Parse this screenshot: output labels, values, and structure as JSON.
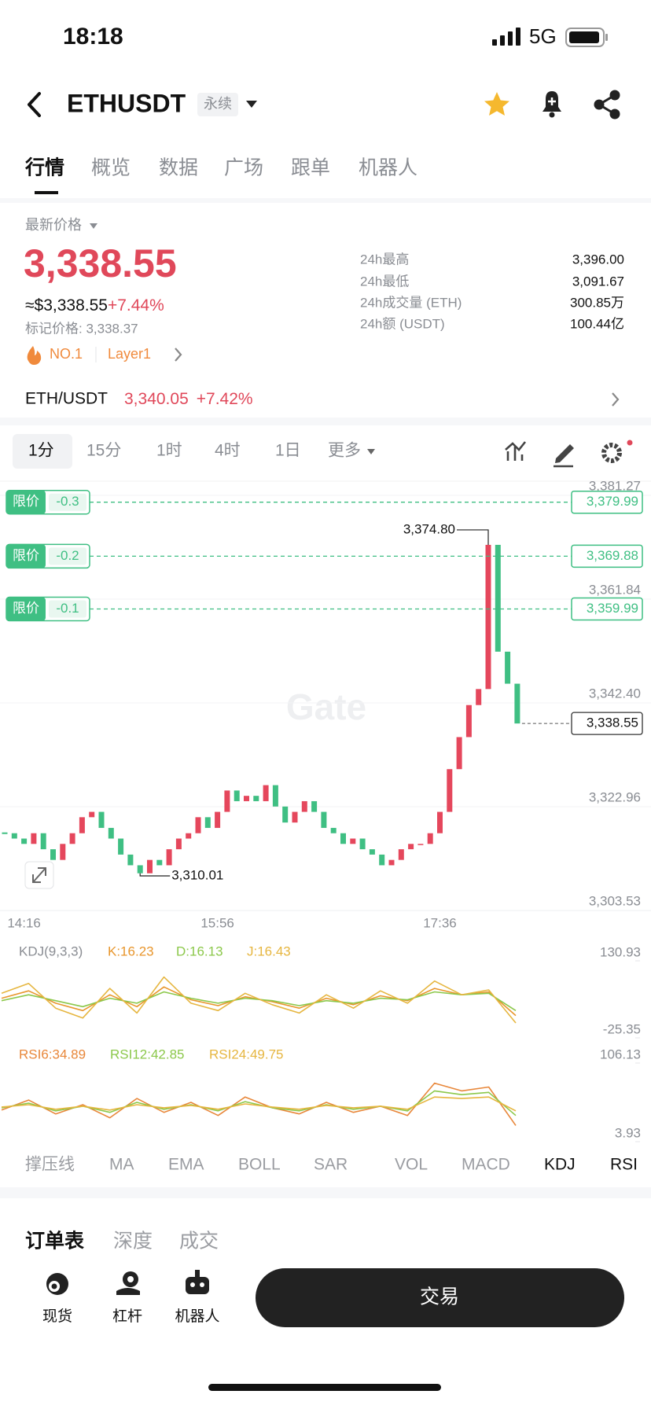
{
  "status_bar": {
    "time": "18:18",
    "network": "5G"
  },
  "header": {
    "symbol": "ETHUSDT",
    "contract_type": "永续"
  },
  "tabs": [
    "行情",
    "概览",
    "数据",
    "广场",
    "跟单",
    "机器人"
  ],
  "price": {
    "label": "最新价格",
    "last": "3,338.55",
    "usd": "≈$3,338.55",
    "change": "+7.44%",
    "mark_price": "标记价格: 3,338.37",
    "rank": "NO.1",
    "sector": "Layer1"
  },
  "stats": [
    {
      "label": "24h最高",
      "value": "3,396.00"
    },
    {
      "label": "24h最低",
      "value": "3,091.67"
    },
    {
      "label": "24h成交量 (ETH)",
      "value": "300.85万"
    },
    {
      "label": "24h额 (USDT)",
      "value": "100.44亿"
    }
  ],
  "spot": {
    "pair": "ETH/USDT",
    "price": "3,340.05",
    "change": "+7.42%"
  },
  "timeframes": [
    "1分",
    "15分",
    "1时",
    "4时",
    "1日",
    "更多"
  ],
  "chart_data": {
    "type": "candlestick",
    "watermark": "Gate",
    "up_color": "#e5475c",
    "down_color": "#3fbf83",
    "categories": [
      null,
      null,
      "14:16",
      null,
      null,
      null,
      null,
      null,
      null,
      null,
      null,
      null,
      null,
      null,
      null,
      null,
      null,
      null,
      null,
      null,
      null,
      null,
      "15:56",
      null,
      null,
      null,
      null,
      null,
      null,
      null,
      null,
      null,
      null,
      null,
      null,
      null,
      null,
      null,
      null,
      null,
      null,
      null,
      null,
      null,
      null,
      "17:36",
      null,
      null,
      null,
      null,
      null,
      null,
      null,
      null
    ],
    "closes": [
      3318,
      3317,
      3316,
      3318,
      3315,
      3313,
      3316,
      3318,
      3321,
      3322,
      3319,
      3317,
      3314,
      3312,
      3310.5,
      3313,
      3312,
      3315,
      3317,
      3318,
      3321,
      3319,
      3322,
      3326,
      3324,
      3325,
      3324,
      3327,
      3323,
      3320,
      3322,
      3324,
      3322,
      3319,
      3318,
      3316,
      3317,
      3315,
      3314,
      3312,
      3313,
      3315,
      3316,
      3316,
      3318,
      3322,
      3330,
      3336,
      3342,
      3345,
      3372,
      3352,
      3346,
      3338.55
    ],
    "ylim": [
      3303.53,
      3381.27
    ],
    "yticks": [
      {
        "value": 3381.27,
        "label": "3,381.27"
      },
      {
        "value": 3361.84,
        "label": "3,361.84"
      },
      {
        "value": 3342.4,
        "label": "3,342.40"
      },
      {
        "value": 3322.96,
        "label": "3,322.96"
      },
      {
        "value": 3303.53,
        "label": "3,303.53"
      }
    ],
    "high": {
      "value": 3374.8,
      "label": "3,374.80"
    },
    "low": {
      "value": 3310.01,
      "label": "3,310.01"
    },
    "current_price": {
      "value": 3338.55,
      "label": "3,338.55"
    },
    "limit_orders": [
      {
        "tag": "限价",
        "offset": "-0.3",
        "price": {
          "value": 3379.99,
          "label": "3,379.99"
        }
      },
      {
        "tag": "限价",
        "offset": "-0.2",
        "price": {
          "value": 3369.88,
          "label": "3,369.88"
        }
      },
      {
        "tag": "限价",
        "offset": "-0.1",
        "price": {
          "value": 3359.99,
          "label": "3,359.99"
        }
      }
    ]
  },
  "indicators": {
    "kdj": {
      "title": "KDJ(9,3,3)",
      "ylim": [
        -25.35,
        130.93
      ],
      "yticks": [
        130.93,
        -25.35
      ],
      "series": [
        {
          "name": "K:16.23",
          "color": "#e8962d",
          "values": [
            55,
            70,
            45,
            30,
            62,
            38,
            78,
            52,
            40,
            58,
            48,
            35,
            55,
            42,
            60,
            50,
            75,
            62,
            68,
            20
          ]
        },
        {
          "name": "D:16.13",
          "color": "#8cc84b",
          "values": [
            50,
            62,
            50,
            38,
            55,
            45,
            68,
            55,
            45,
            55,
            50,
            40,
            50,
            45,
            55,
            52,
            68,
            62,
            65,
            30
          ]
        },
        {
          "name": "J:16.43",
          "color": "#e6b640",
          "values": [
            65,
            85,
            35,
            15,
            75,
            25,
            98,
            45,
            30,
            65,
            42,
            25,
            62,
            35,
            70,
            45,
            90,
            62,
            72,
            5
          ]
        }
      ]
    },
    "rsi": {
      "ylim": [
        3.93,
        106.13
      ],
      "yticks": [
        106.13,
        3.93
      ],
      "series": [
        {
          "name": "RSI6:34.89",
          "color": "#e8873a",
          "values": [
            45,
            58,
            40,
            52,
            35,
            60,
            42,
            55,
            38,
            62,
            48,
            40,
            55,
            42,
            50,
            38,
            80,
            70,
            75,
            25
          ]
        },
        {
          "name": "RSI12:42.85",
          "color": "#8cc84b",
          "values": [
            48,
            54,
            44,
            50,
            42,
            55,
            46,
            52,
            44,
            56,
            48,
            44,
            52,
            46,
            50,
            44,
            70,
            65,
            68,
            38
          ]
        },
        {
          "name": "RSI24:49.75",
          "color": "#e6b640",
          "values": [
            49,
            52,
            46,
            50,
            45,
            52,
            48,
            51,
            46,
            53,
            49,
            46,
            51,
            48,
            50,
            46,
            62,
            60,
            62,
            44
          ]
        }
      ]
    }
  },
  "indicator_tabs": [
    "撑压线",
    "MA",
    "EMA",
    "BOLL",
    "SAR",
    "VOL",
    "MACD",
    "KDJ",
    "RSI"
  ],
  "order_tabs": [
    "订单表",
    "深度",
    "成交"
  ],
  "bottom_nav": [
    "现货",
    "杠杆",
    "机器人"
  ],
  "trade_button": "交易"
}
